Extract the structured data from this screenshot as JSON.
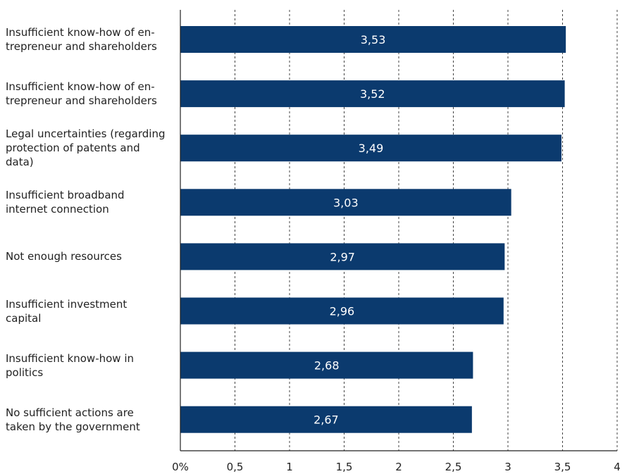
{
  "chart_data": {
    "type": "bar",
    "orientation": "horizontal",
    "categories": [
      "Insufficient know-how of en-\ntrepreneur and shareholders",
      "Insufficient  know-how of en-\ntrepreneur and shareholders",
      "Legal uncertainties (regarding\nprotection of patents and\ndata)",
      "Insufficient broadband\ninternet connection",
      "Not enough resources",
      "Insufficient investment\ncapital",
      "Insufficient know-how in\npolitics",
      "No sufficient actions are\ntaken by the government"
    ],
    "values": [
      3.53,
      3.52,
      3.49,
      3.03,
      2.97,
      2.96,
      2.68,
      2.67
    ],
    "value_labels": [
      "3,53",
      "3,52",
      "3,49",
      "3,03",
      "2,97",
      "2,96",
      "2,68",
      "2,67"
    ],
    "xlim": [
      0,
      4
    ],
    "x_ticks": [
      0,
      0.5,
      1,
      1.5,
      2,
      2.5,
      3,
      3.5,
      4
    ],
    "x_tick_labels": [
      "0%",
      "0,5",
      "1",
      "1,5",
      "2",
      "2,5",
      "3",
      "3,5",
      "4"
    ],
    "title": "",
    "xlabel": "",
    "ylabel": "",
    "grid": "vertical dashed",
    "bar_color": "#0b3a6e",
    "label_color": "#ffffff"
  }
}
